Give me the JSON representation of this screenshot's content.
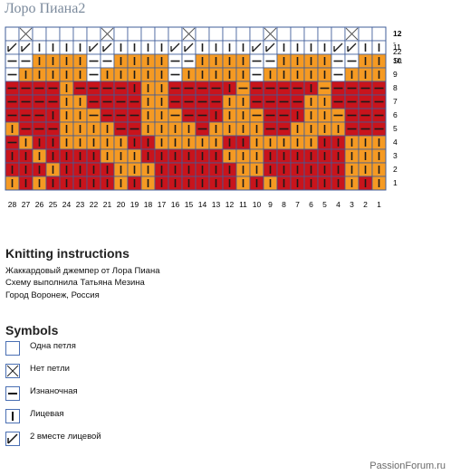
{
  "page": {
    "title": "Лоро Пиана2",
    "watermark": "PassionForum.ru"
  },
  "chart": {
    "colors": {
      "white": "#ffffff",
      "orange": "#f59a23",
      "red": "#c8141c",
      "gridline": "#3f5d9a",
      "symbol": "#1a1a1a"
    },
    "row_labels": [
      {
        "row": 12,
        "text": "12",
        "suffix": " - 22 St."
      },
      {
        "row": 11,
        "text": "11"
      },
      {
        "row": 10,
        "text": "10"
      },
      {
        "row": 9,
        "text": "9"
      },
      {
        "row": 8,
        "text": "8"
      },
      {
        "row": 7,
        "text": "7"
      },
      {
        "row": 6,
        "text": "6"
      },
      {
        "row": 5,
        "text": "5"
      },
      {
        "row": 4,
        "text": "4"
      },
      {
        "row": 3,
        "text": "3"
      },
      {
        "row": 2,
        "text": "2"
      },
      {
        "row": 1,
        "text": "1"
      }
    ],
    "column_labels": [
      "28",
      "27",
      "26",
      "25",
      "24",
      "23",
      "22",
      "21",
      "20",
      "19",
      "18",
      "17",
      "16",
      "15",
      "14",
      "13",
      "12",
      "11",
      "10",
      "9",
      "8",
      "7",
      "6",
      "5",
      "4",
      "3",
      "2",
      "1"
    ],
    "legend_colors_key": {
      "W": "white",
      "O": "orange",
      "R": "red"
    },
    "legend_symbols_key": {
      "x": "no-stitch",
      "p": "purl",
      "k": "knit",
      "t": "k2tog",
      "e": "empty"
    },
    "rows_top_to_bottom": [
      {
        "row": 12,
        "colors": "WWWWWWWWWWWWWWWWWWWWWWWWWWWW",
        "symbols": "exeeeeexeeeeexeeeeexeeeeexee"
      },
      {
        "row": 11,
        "colors": "WWWWWWWWWWWWWWWWWWWWWWWWWWWW",
        "symbols": "ttkkkkttkkkkttkkkkttkkkkttkk"
      },
      {
        "row": 10,
        "colors": "WWOOOOWWOOOOWWOOOOWWOOOOWWOO",
        "symbols": "ppkkkkppkkkkppkkkkppkkkkppkk"
      },
      {
        "row": 9,
        "colors": "WOOOOOWOOOOOWOOOOOWOOOOOWOOO",
        "symbols": "pkkkkkpkkkkkpkkkkkpkkkkkpkkk"
      },
      {
        "row": 8,
        "colors": "RRRRORRRRROORRRRRORRRRRORRRR",
        "symbols": "ppppkppppkkkppppkpppppkppppp"
      },
      {
        "row": 7,
        "colors": "RRRROORRRROORRRROORRRROORRRR",
        "symbols": "ppppkkppppkkppppkkppppkkpppp"
      },
      {
        "row": 6,
        "colors": "RRRROOORRROOORRROOORRROOORRR",
        "symbols": "pppkkkppppkkpppkkkpppkkkpppp"
      },
      {
        "row": 5,
        "colors": "ORRROOOORROOOOROOOORROOOORRR",
        "symbols": "kpppkkkkppkkkkpkkkkppkkkkppp"
      },
      {
        "row": 4,
        "colors": "RORROOOOORROOOOORROOOOORROOO",
        "symbols": "pkkkkkkkkkkkkkkkkkkkkkkkkkkk"
      },
      {
        "row": 3,
        "colors": "RRORRRROOORRRRRROOORRRRRROOO",
        "symbols": "kkkkkkkkkkkkkkkkkkkkkkkkkkkk"
      },
      {
        "row": 2,
        "colors": "RRRORRRROOORRRRRROORRRRRROOO",
        "symbols": "kkkkkkkkkkkkkkkkkkkkkkkkkkkk"
      },
      {
        "row": 1,
        "colors": "ORORRRRRORORRRRRRORORRRRRORO",
        "symbols": "kkkkkkkkkkkkkkkkkkkkkkkkkkkk"
      }
    ]
  },
  "instructions": {
    "heading": "Knitting instructions",
    "lines": [
      "Жаккардовый джемпер от Лора Пиана",
      "Схему выполнила Татьяна Мезина",
      "Город Воронеж, Россия"
    ]
  },
  "symbols": {
    "heading": "Symbols",
    "items": [
      {
        "name": "plain-stitch",
        "icon": "empty-box-icon",
        "label": "Одна петля"
      },
      {
        "name": "no-stitch",
        "icon": "x-box-icon",
        "label": "Нет петли"
      },
      {
        "name": "purl",
        "icon": "dash-box-icon",
        "label": "Изнаночная"
      },
      {
        "name": "knit",
        "icon": "bar-box-icon",
        "label": "Лицевая"
      },
      {
        "name": "k2tog",
        "icon": "slash-box-icon",
        "label": "2 вместе лицевой"
      }
    ]
  }
}
